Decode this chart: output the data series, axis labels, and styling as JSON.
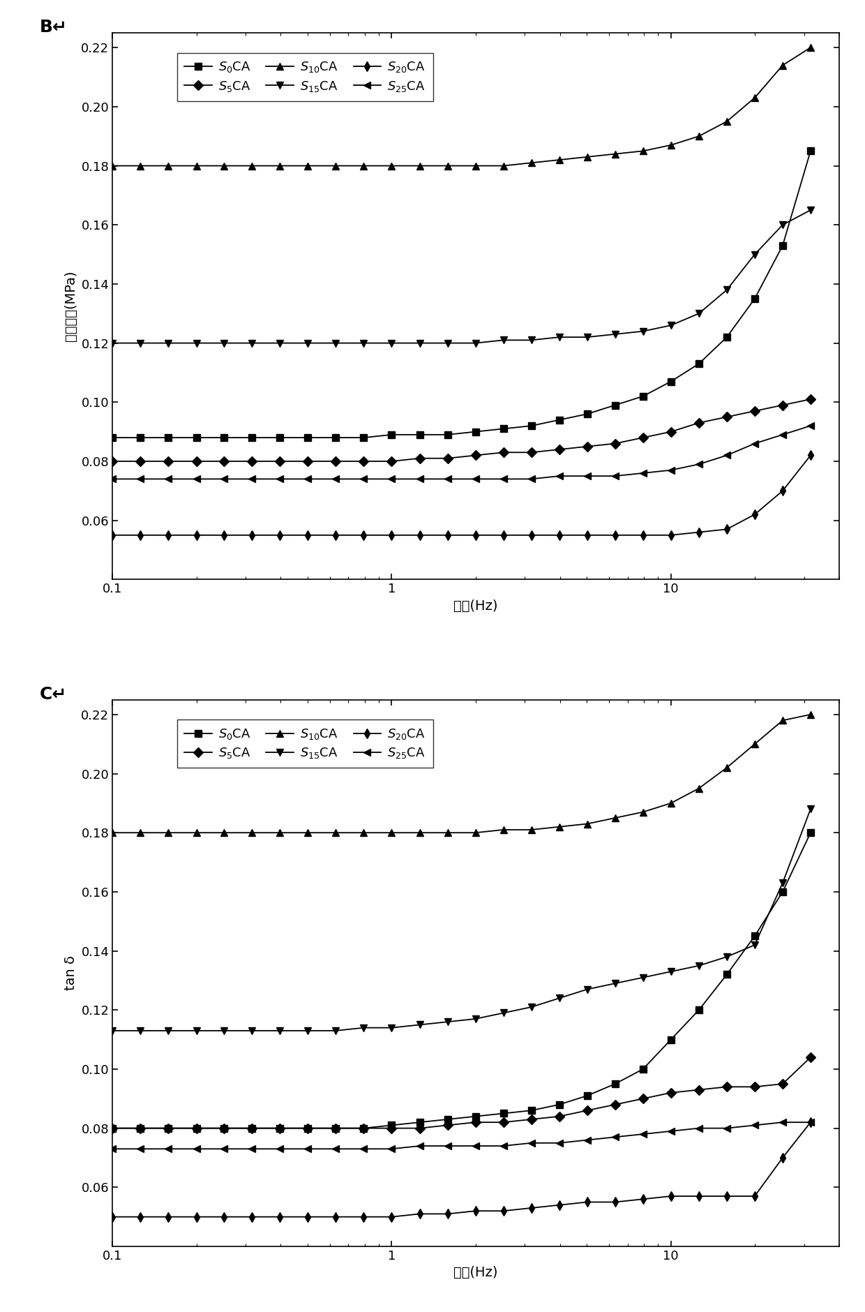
{
  "freq": [
    0.1,
    0.126,
    0.158,
    0.2,
    0.251,
    0.316,
    0.398,
    0.501,
    0.631,
    0.794,
    1.0,
    1.259,
    1.585,
    1.995,
    2.512,
    3.162,
    3.981,
    5.012,
    6.31,
    7.943,
    10.0,
    12.59,
    15.85,
    19.95,
    25.12,
    31.62
  ],
  "panel_B": {
    "S0CA": [
      0.088,
      0.088,
      0.088,
      0.088,
      0.088,
      0.088,
      0.088,
      0.088,
      0.088,
      0.088,
      0.089,
      0.089,
      0.089,
      0.09,
      0.091,
      0.092,
      0.094,
      0.096,
      0.099,
      0.102,
      0.107,
      0.113,
      0.122,
      0.135,
      0.153,
      0.185
    ],
    "S5CA": [
      0.08,
      0.08,
      0.08,
      0.08,
      0.08,
      0.08,
      0.08,
      0.08,
      0.08,
      0.08,
      0.08,
      0.081,
      0.081,
      0.082,
      0.083,
      0.083,
      0.084,
      0.085,
      0.086,
      0.088,
      0.09,
      0.093,
      0.095,
      0.097,
      0.099,
      0.101
    ],
    "S10CA": [
      0.18,
      0.18,
      0.18,
      0.18,
      0.18,
      0.18,
      0.18,
      0.18,
      0.18,
      0.18,
      0.18,
      0.18,
      0.18,
      0.18,
      0.18,
      0.181,
      0.182,
      0.183,
      0.184,
      0.185,
      0.187,
      0.19,
      0.195,
      0.203,
      0.214,
      0.22
    ],
    "S15CA": [
      0.12,
      0.12,
      0.12,
      0.12,
      0.12,
      0.12,
      0.12,
      0.12,
      0.12,
      0.12,
      0.12,
      0.12,
      0.12,
      0.12,
      0.121,
      0.121,
      0.122,
      0.122,
      0.123,
      0.124,
      0.126,
      0.13,
      0.138,
      0.15,
      0.16,
      0.165
    ],
    "S20CA": [
      0.055,
      0.055,
      0.055,
      0.055,
      0.055,
      0.055,
      0.055,
      0.055,
      0.055,
      0.055,
      0.055,
      0.055,
      0.055,
      0.055,
      0.055,
      0.055,
      0.055,
      0.055,
      0.055,
      0.055,
      0.055,
      0.056,
      0.057,
      0.062,
      0.07,
      0.082
    ],
    "S25CA": [
      0.074,
      0.074,
      0.074,
      0.074,
      0.074,
      0.074,
      0.074,
      0.074,
      0.074,
      0.074,
      0.074,
      0.074,
      0.074,
      0.074,
      0.074,
      0.074,
      0.075,
      0.075,
      0.075,
      0.076,
      0.077,
      0.079,
      0.082,
      0.086,
      0.089,
      0.092
    ]
  },
  "panel_C": {
    "S0CA": [
      0.08,
      0.08,
      0.08,
      0.08,
      0.08,
      0.08,
      0.08,
      0.08,
      0.08,
      0.08,
      0.081,
      0.082,
      0.083,
      0.084,
      0.085,
      0.086,
      0.088,
      0.091,
      0.095,
      0.1,
      0.11,
      0.12,
      0.132,
      0.145,
      0.16,
      0.18
    ],
    "S5CA": [
      0.08,
      0.08,
      0.08,
      0.08,
      0.08,
      0.08,
      0.08,
      0.08,
      0.08,
      0.08,
      0.08,
      0.08,
      0.081,
      0.082,
      0.082,
      0.083,
      0.084,
      0.086,
      0.088,
      0.09,
      0.092,
      0.093,
      0.094,
      0.094,
      0.095,
      0.104
    ],
    "S10CA": [
      0.18,
      0.18,
      0.18,
      0.18,
      0.18,
      0.18,
      0.18,
      0.18,
      0.18,
      0.18,
      0.18,
      0.18,
      0.18,
      0.18,
      0.181,
      0.181,
      0.182,
      0.183,
      0.185,
      0.187,
      0.19,
      0.195,
      0.202,
      0.21,
      0.218,
      0.22
    ],
    "S15CA": [
      0.113,
      0.113,
      0.113,
      0.113,
      0.113,
      0.113,
      0.113,
      0.113,
      0.113,
      0.114,
      0.114,
      0.115,
      0.116,
      0.117,
      0.119,
      0.121,
      0.124,
      0.127,
      0.129,
      0.131,
      0.133,
      0.135,
      0.138,
      0.142,
      0.163,
      0.188
    ],
    "S20CA": [
      0.05,
      0.05,
      0.05,
      0.05,
      0.05,
      0.05,
      0.05,
      0.05,
      0.05,
      0.05,
      0.05,
      0.051,
      0.051,
      0.052,
      0.052,
      0.053,
      0.054,
      0.055,
      0.055,
      0.056,
      0.057,
      0.057,
      0.057,
      0.057,
      0.07,
      0.082
    ],
    "S25CA": [
      0.073,
      0.073,
      0.073,
      0.073,
      0.073,
      0.073,
      0.073,
      0.073,
      0.073,
      0.073,
      0.073,
      0.074,
      0.074,
      0.074,
      0.074,
      0.075,
      0.075,
      0.076,
      0.077,
      0.078,
      0.079,
      0.08,
      0.08,
      0.081,
      0.082,
      0.082
    ]
  },
  "series_labels_math": [
    "$S_0$CA",
    "$S_5$CA",
    "$S_{10}$CA",
    "$S_{15}$CA",
    "$S_{20}$CA",
    "$S_{25}$CA"
  ],
  "series_keys": [
    "S0CA",
    "S5CA",
    "S10CA",
    "S15CA",
    "S20CA",
    "S25CA"
  ],
  "markers": [
    "s",
    "D",
    "^",
    "v",
    "d",
    "<"
  ],
  "panel_B_ylabel": "损耗模量(MPa)",
  "panel_C_ylabel": "tan δ",
  "xlabel": "频率(Hz)",
  "label_B": "B",
  "label_C": "C",
  "markersize": 7,
  "linewidth": 1.3,
  "xlim": [
    0.1,
    40
  ],
  "ylim": [
    0.04,
    0.225
  ],
  "yticks": [
    0.06,
    0.08,
    0.1,
    0.12,
    0.14,
    0.16,
    0.18,
    0.2,
    0.22
  ]
}
